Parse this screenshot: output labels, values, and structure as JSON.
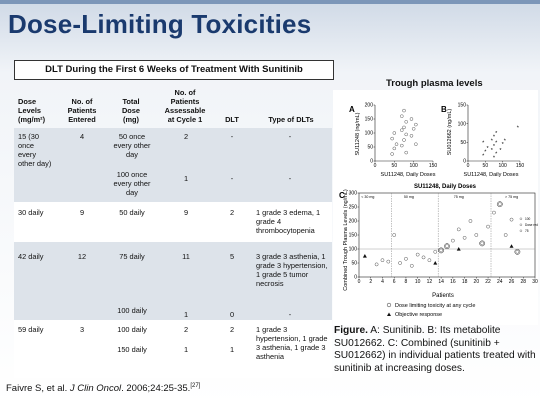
{
  "title": "Dose-Limiting Toxicities",
  "table": {
    "title": "DLT During the First 6 Weeks of Treatment With Sunitinib",
    "headers": {
      "dose_levels": "Dose Levels (mg/m²)",
      "patients_entered": "No. of Patients Entered",
      "total_dose": "Total Dose (mg)",
      "patients_assessable": "No. of Patients Assessable at Cycle 1",
      "dlt": "DLT",
      "type": "Type of DLTs"
    },
    "groups": [
      {
        "dose_level": "15 (30 once every other day)",
        "entered": "4",
        "rows": [
          {
            "total": "50 once every other day",
            "assessable": "2",
            "dlt": "-",
            "type": "-"
          },
          {
            "total": "100 once every other day",
            "assessable": "1",
            "dlt": "-",
            "type": "-"
          }
        ]
      },
      {
        "dose_level": "30 daily",
        "entered": "9",
        "rows": [
          {
            "total": "50 daily",
            "assessable": "9",
            "dlt": "2",
            "type": "1 grade 3 edema, 1 grade 4 thrombocytopenia"
          }
        ]
      },
      {
        "dose_level": "42 daily",
        "entered": "12",
        "rows": [
          {
            "total": "75 daily",
            "assessable": "11",
            "dlt": "5",
            "type": "3 grade 3 asthenia, 1 grade 3 hypertension, 1 grade 5 tumor necrosis"
          },
          {
            "total": "100 daily",
            "assessable": "1",
            "dlt": "0",
            "type": "-"
          }
        ]
      },
      {
        "dose_level": "59 daily",
        "entered": "3",
        "rows": [
          {
            "total": "100 daily",
            "assessable": "2",
            "dlt": "2",
            "type": "1 grade 3 hypertension, 1 grade 3 asthenia, 1 grade 3 asthenia"
          },
          {
            "total": "150 daily",
            "assessable": "1",
            "dlt": "1",
            "type": ""
          }
        ]
      }
    ]
  },
  "citation": {
    "authors": "Faivre S, et al. ",
    "journal": "J Clin Oncol",
    "details": ". 2006;24:25-35.",
    "ref": "[27]"
  },
  "figure": {
    "heading": "Trough plasma levels",
    "caption_label": "Figure.",
    "caption_text": " A: Sunitinib. B: Its metabolite SU012662. C: Combined (sunitinib + SU012662) in individual patients treated with sunitinib at increasing doses.",
    "panels": {
      "A": {
        "label": "A",
        "ylabel": "SU11248 (ng/mL)",
        "xlabel": "SU11248, Daily Doses",
        "yticks": [
          "0",
          "50",
          "100",
          "150",
          "200"
        ],
        "xticks": [
          "0",
          "50",
          "100",
          "150"
        ]
      },
      "B": {
        "label": "B",
        "ylabel": "SU012662 (ng/mL)",
        "xlabel": "SU11248, Daily Doses",
        "yticks": [
          "0",
          "50",
          "100",
          "150"
        ],
        "xticks": [
          "0",
          "50",
          "100",
          "150"
        ]
      },
      "C": {
        "label": "C",
        "title": "SU11248, Daily Doses",
        "ylabel": "Combined Trough Plasma Levels (ng/mL)",
        "xlabel": "Patients",
        "yticks": [
          "0",
          "50",
          "100",
          "150",
          "200",
          "250",
          "300"
        ],
        "xticks": [
          "0",
          "2",
          "4",
          "6",
          "8",
          "10",
          "12",
          "14",
          "16",
          "18",
          "20",
          "22",
          "24",
          "26",
          "28",
          "30"
        ],
        "dose_groups": [
          "< 30 mg",
          "50 mg",
          "75 mg",
          "> 75 mg"
        ],
        "inset_legend": [
          "100",
          "Dose reduced",
          "75"
        ],
        "legend": {
          "dlt": "Dose limiting toxicity at any cycle",
          "response": "Objective response"
        }
      }
    }
  },
  "chart_data": [
    {
      "type": "scatter",
      "title": "",
      "xlabel": "SU11248, Daily Doses",
      "ylabel": "SU11248 (ng/mL)",
      "xlim": [
        0,
        150
      ],
      "ylim": [
        0,
        200
      ],
      "x": [
        50,
        50,
        50,
        50,
        50,
        75,
        75,
        75,
        75,
        75,
        75,
        75,
        75,
        75,
        100,
        100,
        100,
        100,
        100
      ],
      "y": [
        25,
        45,
        60,
        80,
        100,
        30,
        55,
        75,
        95,
        110,
        120,
        140,
        160,
        180,
        60,
        90,
        115,
        130,
        150
      ]
    },
    {
      "type": "scatter",
      "title": "",
      "xlabel": "SU11248, Daily Doses",
      "ylabel": "SU012662 (ng/mL)",
      "xlim": [
        0,
        150
      ],
      "ylim": [
        0,
        150
      ],
      "x": [
        50,
        50,
        50,
        50,
        75,
        75,
        75,
        75,
        75,
        75,
        75,
        75,
        100,
        100,
        100,
        150
      ],
      "y": [
        15,
        25,
        35,
        50,
        10,
        20,
        30,
        40,
        50,
        55,
        65,
        75,
        30,
        45,
        55,
        90
      ]
    },
    {
      "type": "scatter",
      "title": "SU11248, Daily Doses",
      "xlabel": "Patients",
      "ylabel": "Combined Trough Plasma Levels (ng/mL)",
      "xlim": [
        0,
        30
      ],
      "ylim": [
        0,
        300
      ],
      "series": [
        {
          "name": "",
          "x": [
            3,
            4,
            5,
            6,
            7,
            8,
            9,
            10,
            11,
            12,
            13,
            14,
            15,
            16,
            17,
            18,
            19,
            20,
            21,
            22,
            23,
            24,
            25,
            26,
            27
          ],
          "y": [
            45,
            60,
            55,
            150,
            50,
            65,
            40,
            80,
            70,
            60,
            90,
            95,
            110,
            130,
            170,
            140,
            200,
            150,
            120,
            180,
            230,
            260,
            150,
            205,
            90
          ]
        },
        {
          "name": "Dose limiting toxicity at any cycle",
          "x": [
            14,
            15,
            21,
            24,
            27
          ],
          "y": [
            95,
            110,
            120,
            260,
            90
          ]
        },
        {
          "name": "Objective response",
          "x": [
            1,
            13,
            17,
            26
          ],
          "y": [
            75,
            50,
            100,
            110
          ]
        }
      ]
    }
  ]
}
